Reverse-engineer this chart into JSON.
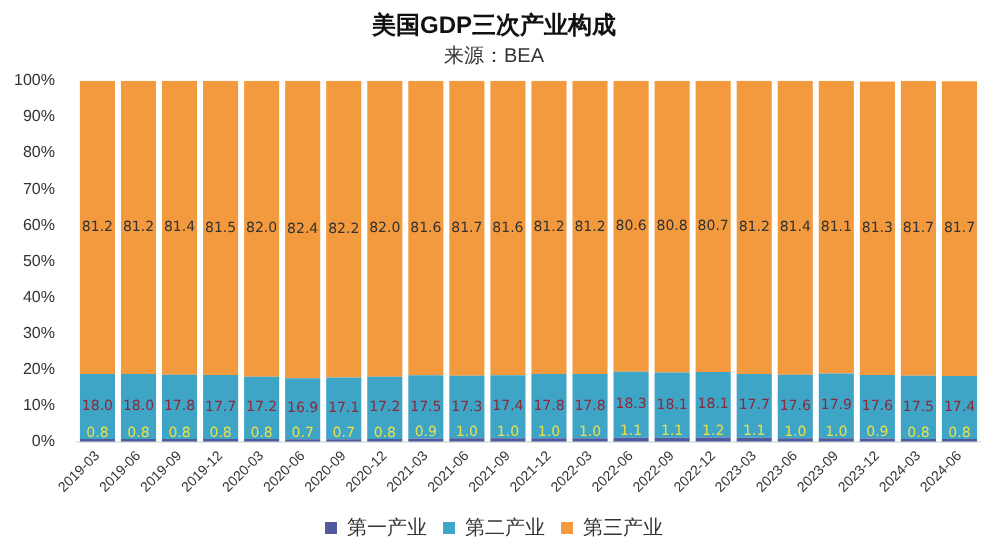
{
  "chart_data": {
    "type": "bar",
    "title": "美国GDP三次产业构成",
    "subtitle": "来源：BEA",
    "stacked": true,
    "categories": [
      "2019-03",
      "2019-06",
      "2019-09",
      "2019-12",
      "2020-03",
      "2020-06",
      "2020-09",
      "2020-12",
      "2021-03",
      "2021-06",
      "2021-09",
      "2021-12",
      "2022-03",
      "2022-06",
      "2022-09",
      "2022-12",
      "2023-03",
      "2023-06",
      "2023-09",
      "2023-12",
      "2024-03",
      "2024-06"
    ],
    "series": [
      {
        "name": "第一产业",
        "color": "#4f5b9c",
        "values": [
          0.8,
          0.8,
          0.8,
          0.8,
          0.8,
          0.7,
          0.7,
          0.8,
          0.9,
          1.0,
          1.0,
          1.0,
          1.0,
          1.1,
          1.1,
          1.2,
          1.1,
          1.0,
          1.0,
          0.9,
          0.8,
          0.8
        ],
        "value_labels": [
          "0.8",
          "0.8",
          "0.8",
          "0.8",
          "0.8",
          "0.7",
          "0.7",
          "0.8",
          "0.9",
          "1.0",
          "1.0",
          "1.0",
          "1.0",
          "1.1",
          "1.1",
          "1.2",
          "1.1",
          "1.0",
          "1.0",
          "0.9",
          "0.8",
          "0.8"
        ]
      },
      {
        "name": "第二产业",
        "color": "#3ea5c6",
        "values": [
          18.0,
          18.0,
          17.8,
          17.7,
          17.2,
          16.9,
          17.1,
          17.2,
          17.5,
          17.3,
          17.4,
          17.8,
          17.8,
          18.3,
          18.1,
          18.1,
          17.7,
          17.6,
          17.9,
          17.6,
          17.5,
          17.4
        ],
        "value_labels": [
          "18.0",
          "18.0",
          "17.8",
          "17.7",
          "17.2",
          "16.9",
          "17.1",
          "17.2",
          "17.5",
          "17.3",
          "17.4",
          "17.8",
          "17.8",
          "18.3",
          "18.1",
          "18.1",
          "17.7",
          "17.6",
          "17.9",
          "17.6",
          "17.5",
          "17.4"
        ]
      },
      {
        "name": "第三产业",
        "color": "#f39a3e",
        "values": [
          81.2,
          81.2,
          81.4,
          81.5,
          82.0,
          82.4,
          82.2,
          82.0,
          81.6,
          81.7,
          81.6,
          81.2,
          81.2,
          80.6,
          80.8,
          80.7,
          81.2,
          81.4,
          81.1,
          81.3,
          81.7,
          81.7
        ],
        "value_labels": [
          "81.2",
          "81.2",
          "81.4",
          "81.5",
          "82.0",
          "82.4",
          "82.2",
          "82.0",
          "81.6",
          "81.7",
          "81.6",
          "81.2",
          "81.2",
          "80.6",
          "80.8",
          "80.7",
          "81.2",
          "81.4",
          "81.1",
          "81.3",
          "81.7",
          "81.7"
        ]
      }
    ],
    "ylim": [
      0,
      100
    ],
    "yticks": [
      {
        "value": 0,
        "label": "0%"
      },
      {
        "value": 10,
        "label": "10%"
      },
      {
        "value": 20,
        "label": "20%"
      },
      {
        "value": 30,
        "label": "30%"
      },
      {
        "value": 40,
        "label": "40%"
      },
      {
        "value": 50,
        "label": "50%"
      },
      {
        "value": 60,
        "label": "60%"
      },
      {
        "value": 70,
        "label": "70%"
      },
      {
        "value": 80,
        "label": "80%"
      },
      {
        "value": 90,
        "label": "90%"
      },
      {
        "value": 100,
        "label": "100%"
      }
    ],
    "grid": false,
    "legend": "bottom"
  }
}
